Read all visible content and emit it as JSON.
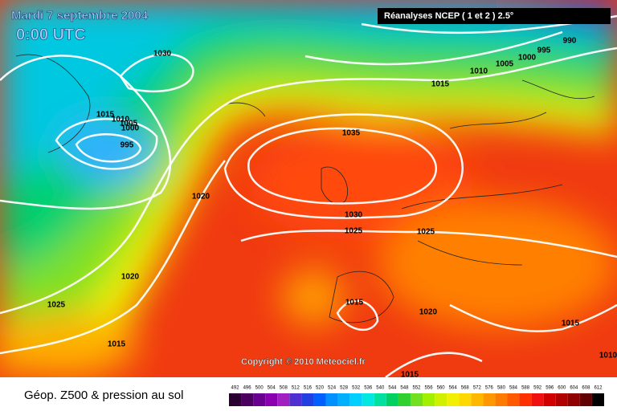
{
  "title": "Mardi 7 septembre 2004",
  "time": "0:00 UTC",
  "source": "Réanalyses NCEP ( 1 et 2 ) 2.5°",
  "copyright": "Copyright © 2010 Meteociel.fr",
  "caption": "Géop. Z500 & pression au sol",
  "isobar_labels": [
    1030,
    990,
    995,
    1000,
    1005,
    1010,
    1015,
    1015,
    1010,
    1005,
    1000,
    995,
    1035,
    1020,
    1030,
    1025,
    1025,
    1020,
    1025,
    1015,
    1020,
    1015,
    1015,
    1015,
    1010
  ],
  "legend": {
    "levels": [
      492,
      496,
      500,
      504,
      508,
      512,
      516,
      520,
      524,
      528,
      532,
      536,
      540,
      544,
      548,
      552,
      556,
      560,
      564,
      568,
      572,
      576,
      580,
      584,
      588,
      592,
      596,
      600,
      604,
      608,
      612
    ],
    "colors": [
      "#2a0030",
      "#4b0060",
      "#6a0090",
      "#8a00b0",
      "#a020c0",
      "#5030d0",
      "#2040e0",
      "#0060ff",
      "#0090ff",
      "#00b0ff",
      "#00d0ff",
      "#00e8e0",
      "#00e0a0",
      "#00d060",
      "#30d030",
      "#70e020",
      "#a0f000",
      "#d0f000",
      "#f0f000",
      "#ffd800",
      "#ffb800",
      "#ff9800",
      "#ff7a00",
      "#ff5a00",
      "#ff3000",
      "#f01010",
      "#d00000",
      "#b00000",
      "#900000",
      "#600000",
      "#000000"
    ]
  }
}
